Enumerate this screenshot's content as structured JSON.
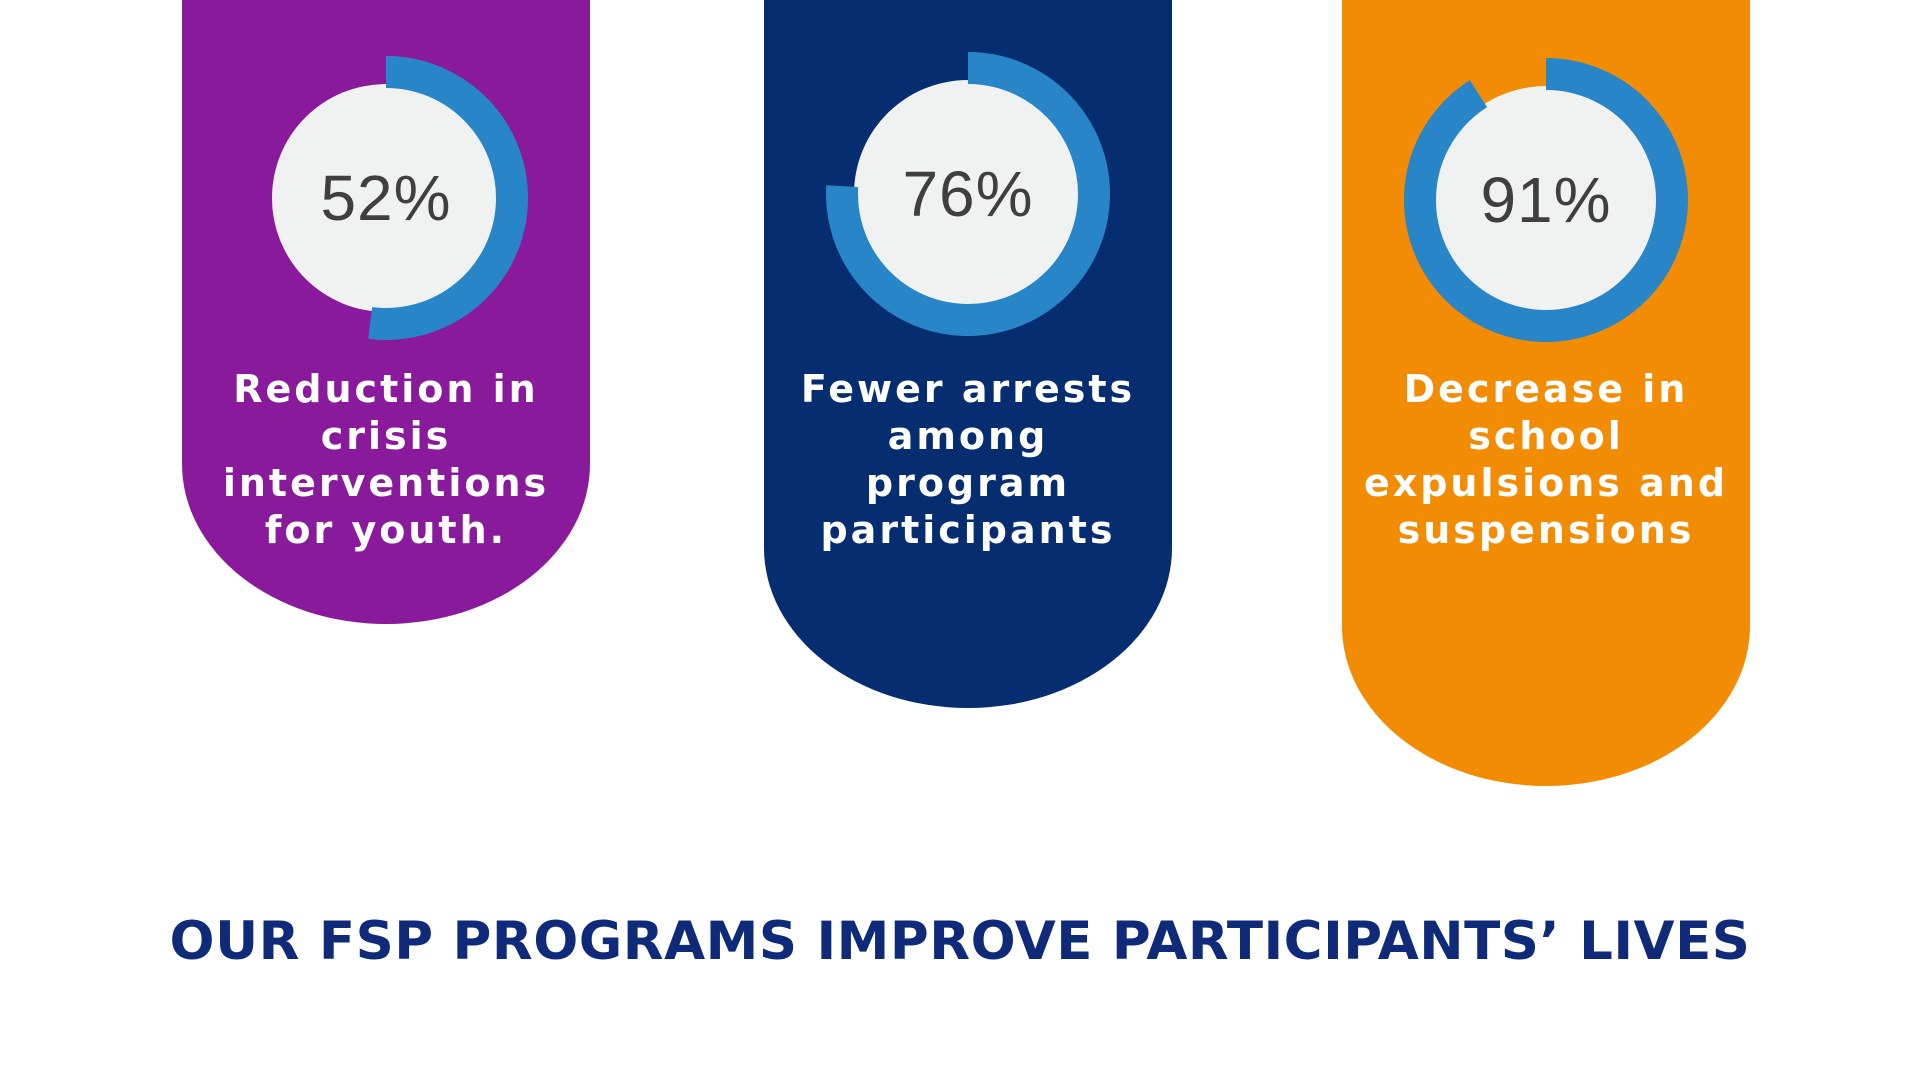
{
  "colors": {
    "background": "#ffffff",
    "ring": "#2886c8",
    "center": "#f0f2f1",
    "headline": "#0e2a78",
    "stat_text": "#3f3f3f"
  },
  "headline": "OUR FSP PROGRAMS IMPROVE PARTICIPANTS’ LIVES",
  "chart_data": [
    {
      "type": "pie",
      "subtype": "donut",
      "value": 52,
      "display": "52%",
      "label": "Reduction in crisis interventions for youth.",
      "label_lines": [
        "Reduction in",
        "crisis",
        "interventions",
        "for youth."
      ],
      "card_color": "#8a1a9c"
    },
    {
      "type": "pie",
      "subtype": "donut",
      "value": 76,
      "display": "76%",
      "label": "Fewer arrests among program participants",
      "label_lines": [
        "Fewer arrests",
        "among",
        "program",
        "participants"
      ],
      "card_color": "#052d70"
    },
    {
      "type": "pie",
      "subtype": "donut",
      "value": 91,
      "display": "91%",
      "label": "Decrease in school expulsions and suspensions",
      "label_lines": [
        "Decrease in",
        "school",
        "expulsions and",
        "suspensions"
      ],
      "card_color": "#f28c05"
    }
  ]
}
